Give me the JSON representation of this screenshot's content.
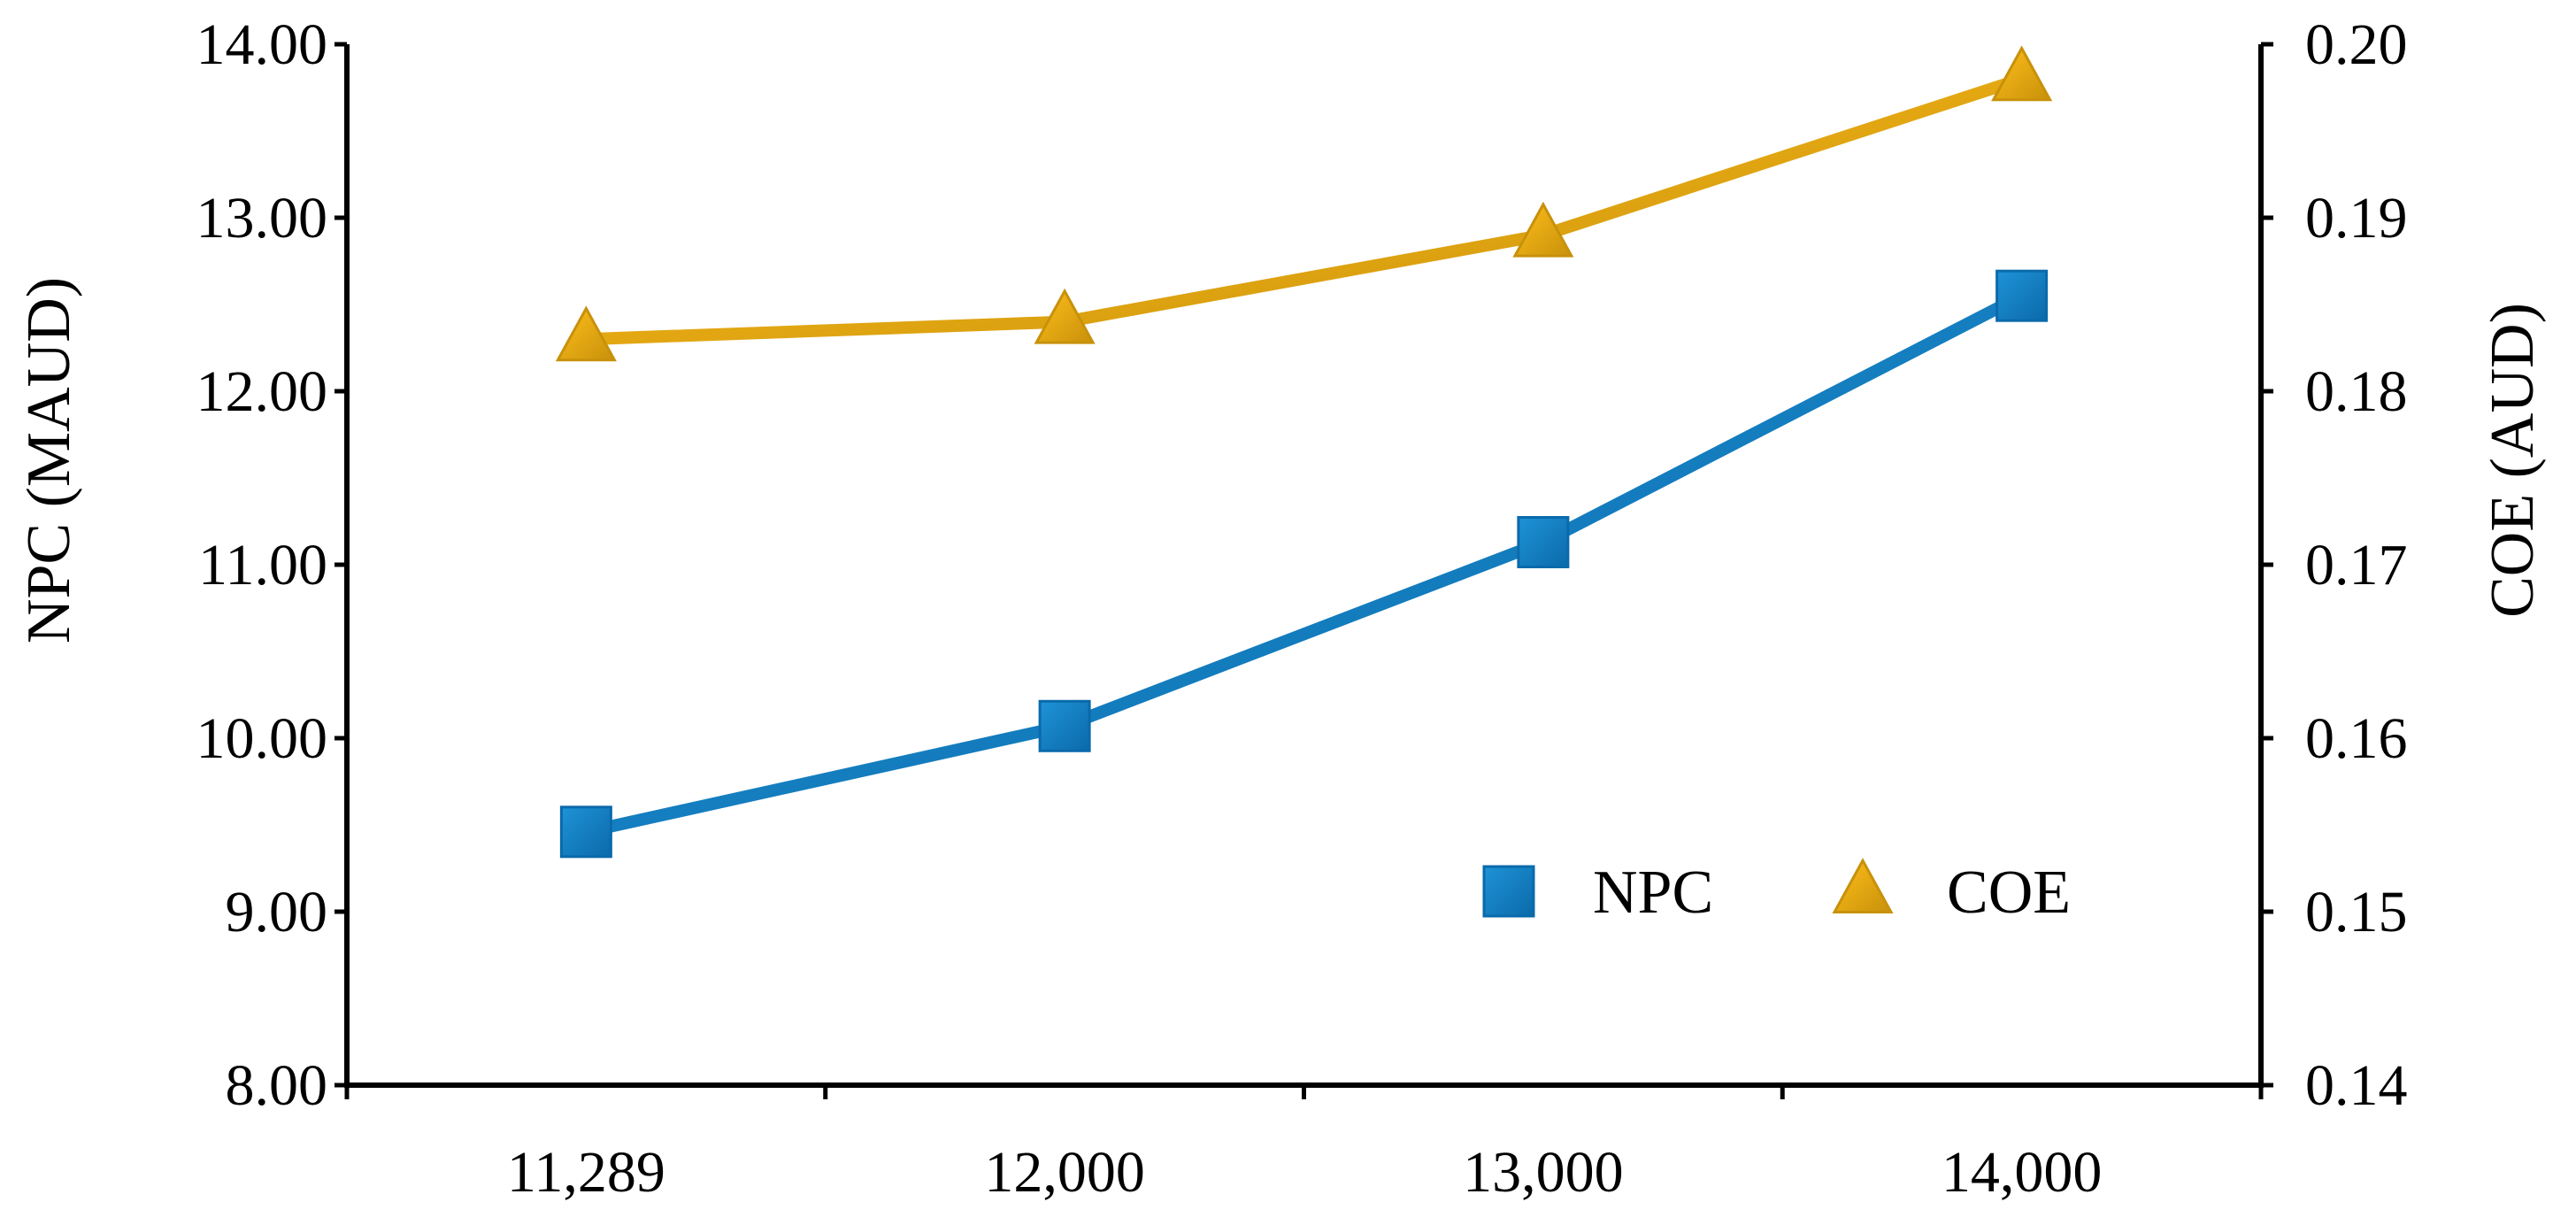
{
  "chart_data": {
    "type": "line",
    "categories": [
      "11,289",
      "12,000",
      "13,000",
      "14,000"
    ],
    "series": [
      {
        "name": "NPC",
        "axis": "left",
        "values": [
          9.46,
          10.07,
          11.13,
          12.55
        ],
        "color": "#1180C4",
        "color_dark": "#0A6AAB",
        "marker": "square"
      },
      {
        "name": "COE",
        "axis": "right",
        "values": [
          0.183,
          0.184,
          0.189,
          0.198
        ],
        "color": "#F2A900",
        "color_dark": "#C8910B",
        "marker": "triangle"
      }
    ],
    "left_axis": {
      "label": "NPC (MAUD)",
      "ylim": [
        8,
        14
      ],
      "ticks": [
        "8.00",
        "9.00",
        "10.00",
        "11.00",
        "12.00",
        "13.00",
        "14.00"
      ]
    },
    "right_axis": {
      "label": "COE (AUD)",
      "ylim": [
        0.14,
        0.2
      ],
      "ticks": [
        "0.14",
        "0.15",
        "0.16",
        "0.17",
        "0.18",
        "0.19",
        "0.20"
      ]
    },
    "grid": false,
    "legend_position": "bottom-right inside plot"
  }
}
